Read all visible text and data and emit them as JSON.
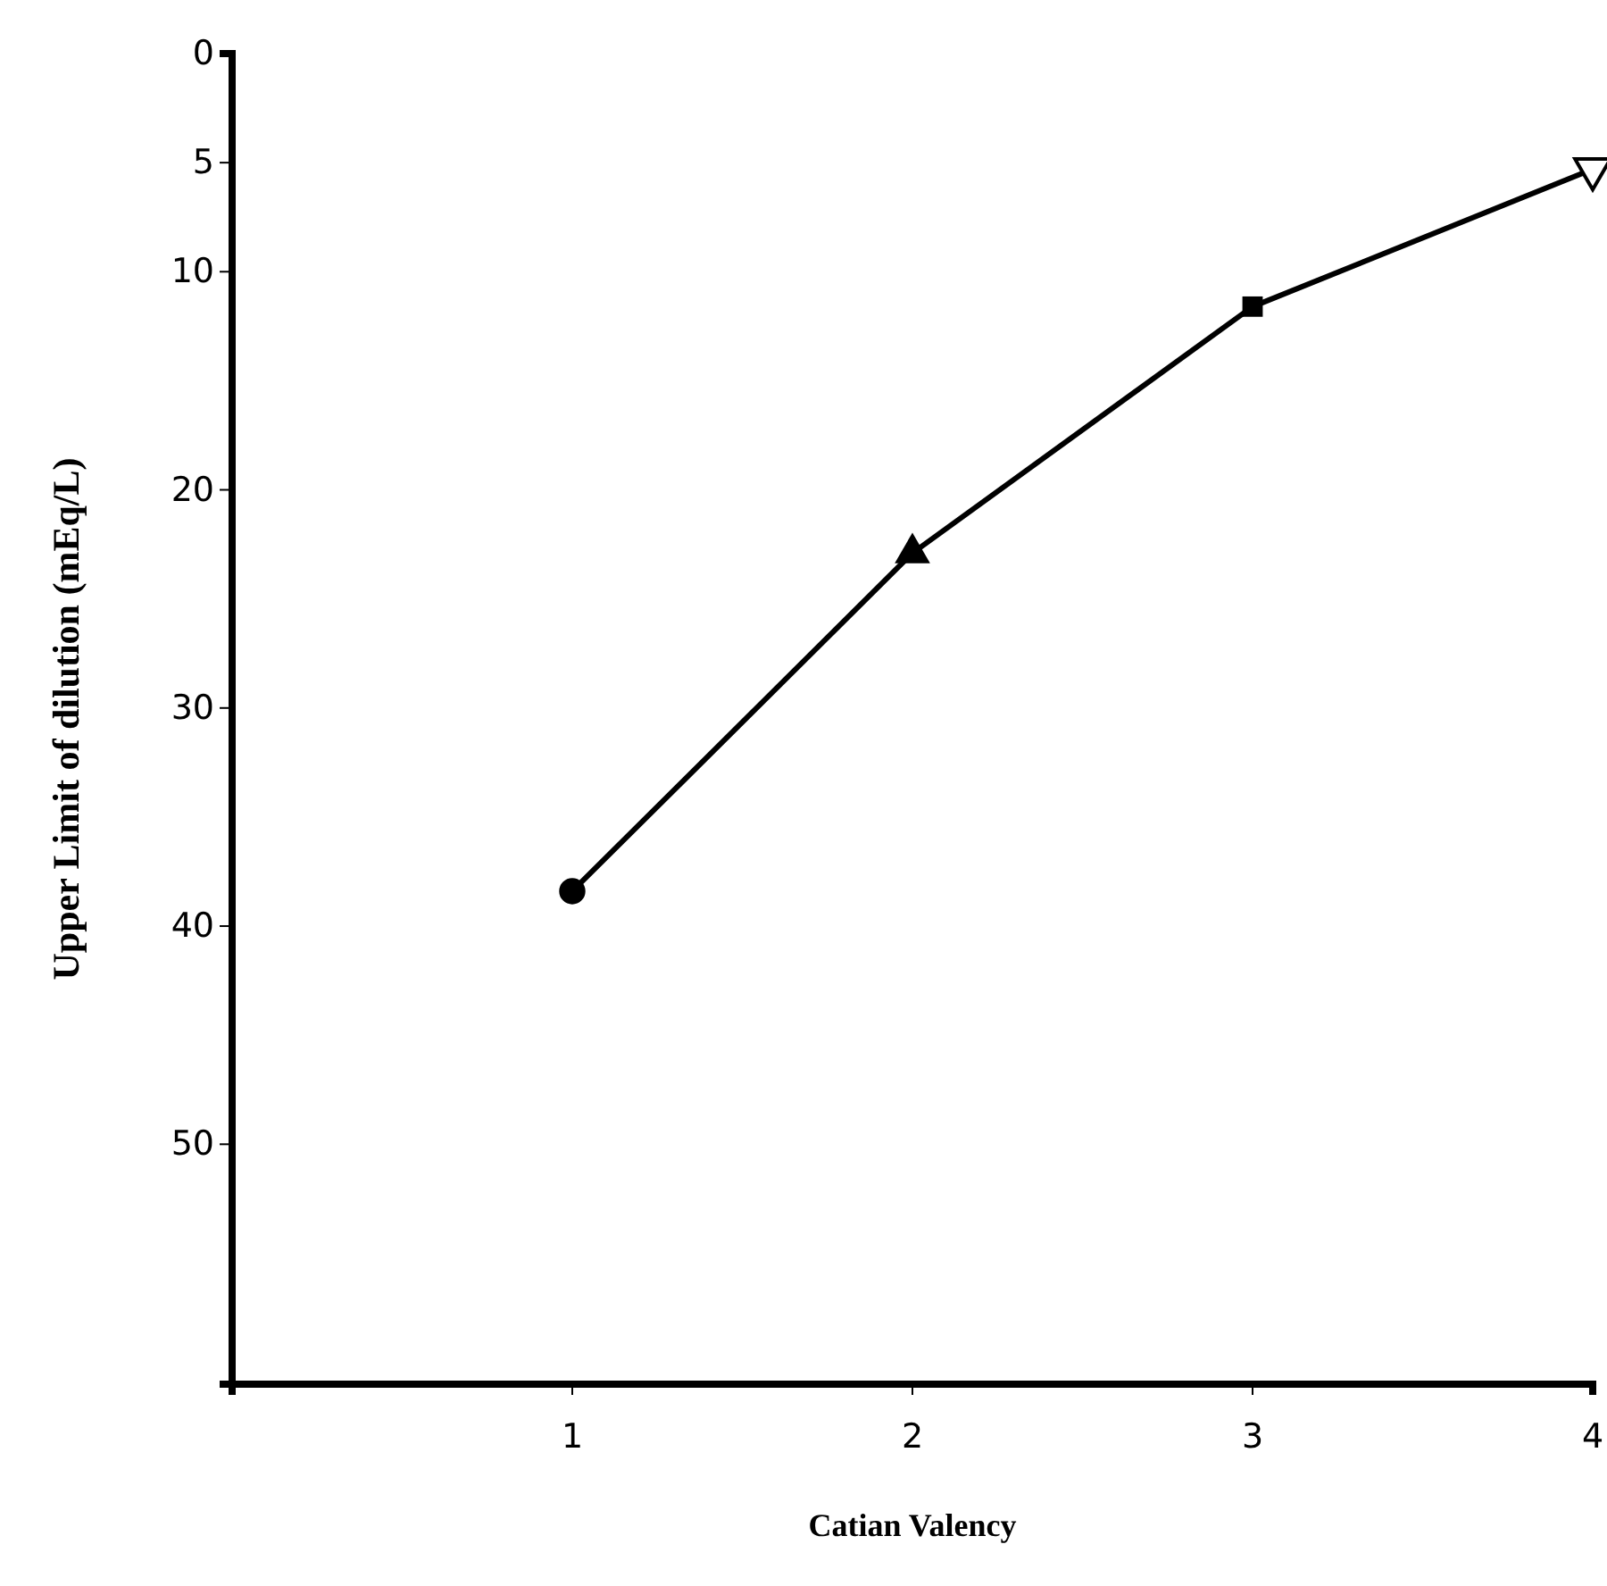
{
  "chart_data": {
    "type": "line",
    "xlabel": "Catian Valency",
    "ylabel": "Upper Limit of dilution (mEq/L)",
    "xlim": [
      0,
      4
    ],
    "xticks": [
      1,
      2,
      3,
      4
    ],
    "ylim": [
      61,
      0
    ],
    "yticks": [
      0,
      5,
      10,
      20,
      30,
      40,
      50
    ],
    "grid": false,
    "series": [
      {
        "type": "line",
        "color": "#000000",
        "marker": "none",
        "line_style": "solid",
        "x": [
          1,
          2,
          3,
          4
        ],
        "values": [
          38.4,
          22.9,
          11.6,
          5.3
        ]
      },
      {
        "type": "scatter",
        "color": "#000000",
        "marker": "circle",
        "x": [
          1
        ],
        "values": [
          38.4
        ]
      },
      {
        "type": "scatter",
        "color": "#000000",
        "marker": "triangle",
        "x": [
          2
        ],
        "values": [
          22.9
        ]
      },
      {
        "type": "scatter",
        "color": "#000000",
        "marker": "square",
        "x": [
          3
        ],
        "values": [
          11.6
        ]
      },
      {
        "type": "scatter",
        "color": "#000000",
        "marker": "triangle-down",
        "x": [
          4
        ],
        "values": [
          5.3
        ]
      }
    ]
  }
}
